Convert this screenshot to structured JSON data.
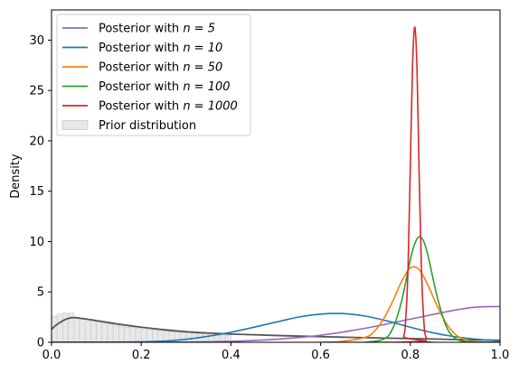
{
  "chart_data": {
    "type": "line",
    "title": "",
    "xlabel": "",
    "ylabel": "Density",
    "xlim": [
      0.0,
      1.0
    ],
    "ylim": [
      0,
      33
    ],
    "x_ticks": [
      0.0,
      0.2,
      0.4,
      0.6,
      0.8,
      1.0
    ],
    "x_tick_labels": [
      "0.0",
      "0.2",
      "0.4",
      "0.6",
      "0.8",
      "1.0"
    ],
    "y_ticks": [
      0,
      5,
      10,
      15,
      20,
      25,
      30
    ],
    "y_tick_labels": [
      "0",
      "5",
      "10",
      "15",
      "20",
      "25",
      "30"
    ],
    "grid": false,
    "legend_position": "top-left",
    "series": [
      {
        "name": "Posterior with n = 5",
        "legend_prefix": "Posterior with ",
        "legend_math": "n = 5",
        "color": "#9467bd",
        "x": [
          0.0,
          0.3,
          0.4,
          0.5,
          0.6,
          0.7,
          0.8,
          0.9,
          0.95,
          1.0
        ],
        "y": [
          0.0,
          0.02,
          0.1,
          0.3,
          0.7,
          1.4,
          2.3,
          3.2,
          3.5,
          3.55
        ]
      },
      {
        "name": "Posterior with n = 10",
        "legend_prefix": "Posterior with ",
        "legend_math": "n = 10",
        "color": "#1f77b4",
        "x": [
          0.0,
          0.2,
          0.3,
          0.4,
          0.5,
          0.55,
          0.6,
          0.65,
          0.7,
          0.75,
          0.8,
          0.85,
          0.9,
          0.95,
          1.0
        ],
        "y": [
          0.0,
          0.05,
          0.3,
          1.0,
          2.0,
          2.5,
          2.8,
          2.85,
          2.6,
          2.1,
          1.5,
          0.95,
          0.55,
          0.3,
          0.15
        ]
      },
      {
        "name": "Posterior with n = 50",
        "legend_prefix": "Posterior with ",
        "legend_math": "n = 50",
        "color": "#ff7f0e",
        "x": [
          0.6,
          0.65,
          0.7,
          0.72,
          0.74,
          0.76,
          0.78,
          0.8,
          0.82,
          0.84,
          0.86,
          0.88,
          0.9,
          0.92,
          0.95,
          1.0
        ],
        "y": [
          0.0,
          0.1,
          0.5,
          1.1,
          2.3,
          4.0,
          6.0,
          7.4,
          7.2,
          5.6,
          3.6,
          1.9,
          0.8,
          0.3,
          0.05,
          0.0
        ]
      },
      {
        "name": "Posterior with n = 100",
        "legend_prefix": "Posterior with ",
        "legend_math": "n = 100",
        "color": "#2ca02c",
        "x": [
          0.7,
          0.74,
          0.76,
          0.78,
          0.8,
          0.81,
          0.82,
          0.83,
          0.84,
          0.86,
          0.88,
          0.9,
          0.93,
          1.0
        ],
        "y": [
          0.0,
          0.3,
          1.3,
          4.0,
          8.2,
          9.8,
          10.5,
          10.0,
          8.5,
          4.5,
          1.6,
          0.4,
          0.05,
          0.0
        ]
      },
      {
        "name": "Posterior with n = 1000",
        "legend_prefix": "Posterior with ",
        "legend_math": "n = 1000",
        "color": "#d62728",
        "x": [
          0.0,
          0.77,
          0.785,
          0.79,
          0.795,
          0.8,
          0.805,
          0.81,
          0.815,
          0.82,
          0.825,
          0.83,
          0.835,
          0.85,
          1.0
        ],
        "y": [
          0.0,
          0.0,
          0.6,
          2.5,
          7.5,
          17.5,
          27.5,
          31.3,
          27.0,
          16.0,
          7.0,
          2.2,
          0.5,
          0.0,
          0.0
        ]
      }
    ],
    "prior": {
      "name": "Prior distribution",
      "fill_color": "#e8e8e8",
      "edge_color": "#c8c8c8",
      "density_line_color": "#555555",
      "histogram": {
        "bin_width": 0.0125,
        "bin_starts": [
          0.0,
          0.0125,
          0.025,
          0.0375,
          0.05,
          0.0625,
          0.075,
          0.0875,
          0.1,
          0.1125,
          0.125,
          0.1375,
          0.15,
          0.1625,
          0.175,
          0.1875,
          0.2,
          0.2125,
          0.225,
          0.2375,
          0.25,
          0.2625,
          0.275,
          0.2875,
          0.3,
          0.3125,
          0.325,
          0.3375,
          0.35,
          0.3625,
          0.375,
          0.3875
        ],
        "heights": [
          2.6,
          2.8,
          2.9,
          2.9,
          2.5,
          2.3,
          2.1,
          2.2,
          2.0,
          1.9,
          1.8,
          1.7,
          1.6,
          1.5,
          1.5,
          1.4,
          1.3,
          1.25,
          1.2,
          1.15,
          1.1,
          1.05,
          1.0,
          0.95,
          0.95,
          0.9,
          0.85,
          0.85,
          0.8,
          0.75,
          0.7,
          0.7
        ]
      },
      "density": {
        "x": [
          0.0,
          0.01,
          0.02,
          0.03,
          0.04,
          0.05,
          0.07,
          0.1,
          0.15,
          0.2,
          0.25,
          0.3,
          0.35,
          0.4,
          0.5,
          0.6,
          0.7,
          0.8,
          0.9,
          1.0
        ],
        "y": [
          1.3,
          1.7,
          2.0,
          2.25,
          2.4,
          2.45,
          2.35,
          2.15,
          1.8,
          1.5,
          1.25,
          1.05,
          0.92,
          0.82,
          0.68,
          0.56,
          0.46,
          0.37,
          0.28,
          0.2
        ]
      }
    }
  }
}
